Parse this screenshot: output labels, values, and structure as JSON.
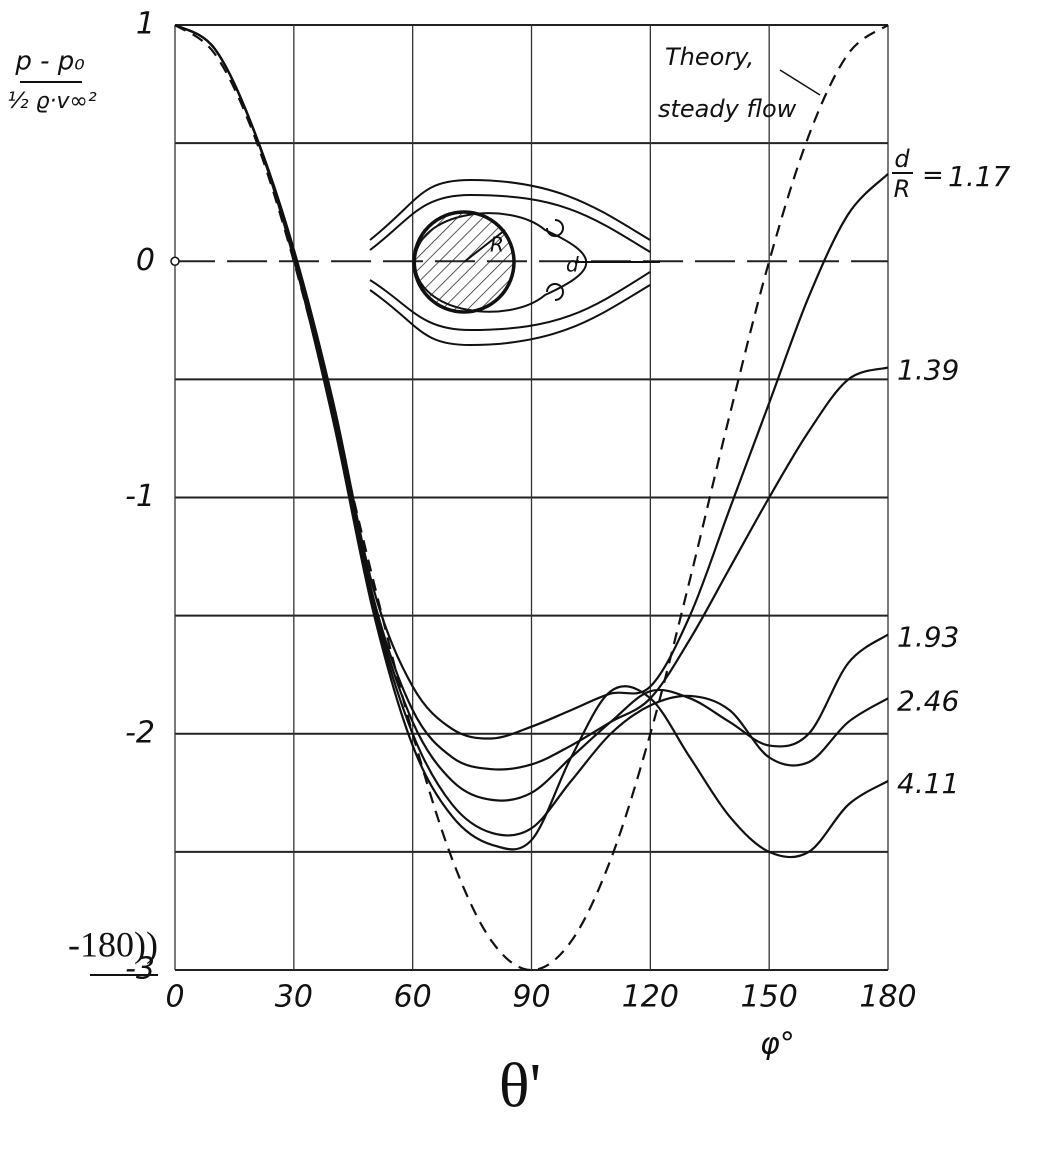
{
  "chart_data": {
    "type": "line",
    "ylabel_numerator": "p - p₀",
    "ylabel_denominator": "½ ϱ·v∞²",
    "xlabel": "φ°",
    "x": [
      0,
      10,
      20,
      30,
      40,
      50,
      60,
      70,
      80,
      90,
      100,
      110,
      120,
      130,
      140,
      150,
      160,
      170,
      180
    ],
    "xlim": [
      0,
      180
    ],
    "xticks": [
      0,
      30,
      60,
      90,
      120,
      150,
      180
    ],
    "ylim": [
      -3,
      1
    ],
    "yticks": [
      -3,
      -2,
      -1,
      0,
      1
    ],
    "minor_gridlines": [
      -2.5,
      -1.5,
      -0.5,
      0.5
    ],
    "grid": true,
    "series": [
      {
        "name": "Theory,",
        "name_line2": "steady flow",
        "color": "#111111",
        "dashed": true,
        "values": [
          1,
          0.879,
          0.532,
          0,
          -0.653,
          -1.347,
          -2,
          -2.532,
          -2.879,
          -3,
          -2.879,
          -2.532,
          -2,
          -1.347,
          -0.653,
          0,
          0.532,
          0.879,
          1
        ]
      },
      {
        "name": "1.17",
        "color": "#111111",
        "dashed": false,
        "values": [
          1,
          0.9,
          0.55,
          0.05,
          -0.6,
          -1.38,
          -1.8,
          -1.98,
          -2.02,
          -1.97,
          -1.9,
          -1.83,
          -1.8,
          -1.5,
          -1.05,
          -0.6,
          -0.15,
          0.2,
          0.37
        ]
      },
      {
        "name": "1.39",
        "color": "#111111",
        "dashed": false,
        "values": [
          1,
          0.9,
          0.55,
          0.04,
          -0.62,
          -1.42,
          -1.9,
          -2.1,
          -2.15,
          -2.13,
          -2.05,
          -1.95,
          -1.85,
          -1.6,
          -1.3,
          -1.0,
          -0.72,
          -0.5,
          -0.45
        ]
      },
      {
        "name": "1.93",
        "color": "#111111",
        "dashed": false,
        "values": [
          1,
          0.9,
          0.55,
          0.03,
          -0.64,
          -1.44,
          -1.95,
          -2.2,
          -2.28,
          -2.25,
          -2.1,
          -1.95,
          -1.82,
          -1.85,
          -1.95,
          -2.05,
          -2.0,
          -1.7,
          -1.58
        ]
      },
      {
        "name": "2.46",
        "color": "#111111",
        "dashed": false,
        "values": [
          1,
          0.9,
          0.55,
          0.02,
          -0.66,
          -1.46,
          -2.0,
          -2.3,
          -2.42,
          -2.4,
          -2.2,
          -2.0,
          -1.88,
          -1.84,
          -1.9,
          -2.1,
          -2.12,
          -1.95,
          -1.85
        ]
      },
      {
        "name": "4.11",
        "color": "#111111",
        "dashed": false,
        "values": [
          1,
          0.9,
          0.55,
          0.01,
          -0.68,
          -1.48,
          -2.05,
          -2.35,
          -2.47,
          -2.45,
          -2.1,
          -1.82,
          -1.85,
          -2.1,
          -2.35,
          -2.5,
          -2.5,
          -2.3,
          -2.2
        ]
      }
    ],
    "ratio_label": {
      "numerator": "d",
      "denominator": "R",
      "equals": "="
    },
    "diagram_labels": {
      "radius": "R",
      "distance": "d"
    }
  },
  "extra_texts": {
    "left_fragment": "-180))",
    "bottom_symbol": "θ'"
  }
}
